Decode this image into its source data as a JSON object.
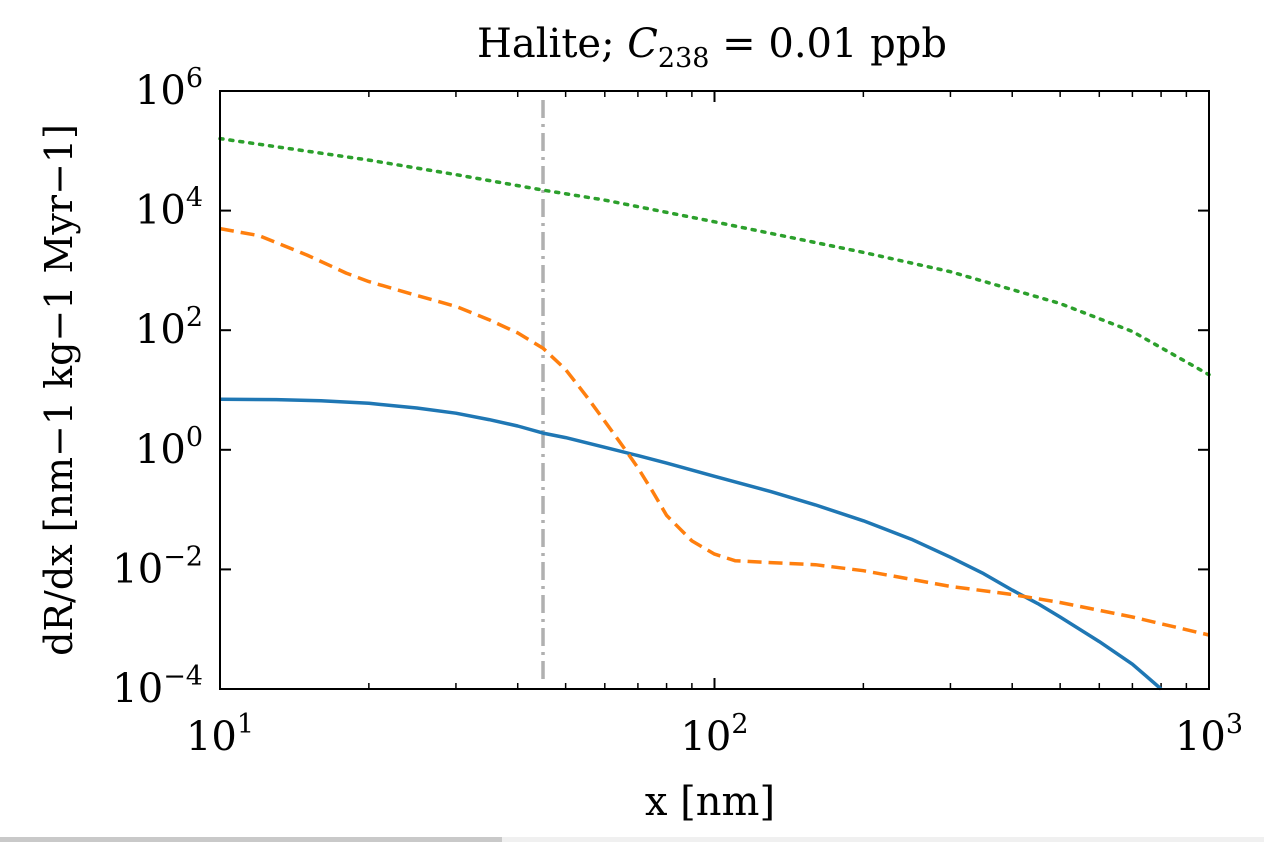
{
  "chart_data": {
    "type": "line",
    "title": "Halite; C238 = 0.01 ppb",
    "title_parts": {
      "main": "Halite; ",
      "var": "C",
      "sub": "238",
      "rest": " = 0.01 ppb"
    },
    "xlabel": "x [nm]",
    "ylabel": "dR/dx [nm−1 kg−1 Myr−1]",
    "xscale": "log",
    "yscale": "log",
    "xlim": [
      10,
      1000
    ],
    "ylim": [
      0.0001,
      1000000
    ],
    "x_ticks": [
      {
        "value": 10,
        "base": "10",
        "exp": "1"
      },
      {
        "value": 100,
        "base": "10",
        "exp": "2"
      },
      {
        "value": 1000,
        "base": "10",
        "exp": "3"
      }
    ],
    "y_ticks": [
      {
        "value": 0.0001,
        "base": "10",
        "exp": "−4"
      },
      {
        "value": 0.01,
        "base": "10",
        "exp": "−2"
      },
      {
        "value": 1,
        "base": "10",
        "exp": "0"
      },
      {
        "value": 100,
        "base": "10",
        "exp": "2"
      },
      {
        "value": 10000,
        "base": "10",
        "exp": "4"
      },
      {
        "value": 1000000,
        "base": "10",
        "exp": "6"
      }
    ],
    "grid": false,
    "vline": {
      "x": 45,
      "color": "#b0b0b0",
      "style": "dash-dot"
    },
    "series": [
      {
        "color": "#1f77b4",
        "style": "solid",
        "x": [
          10,
          13,
          16,
          20,
          25,
          30,
          35,
          40,
          45,
          50,
          60,
          70,
          80,
          100,
          130,
          160,
          200,
          250,
          300,
          350,
          400,
          450,
          500,
          600,
          700,
          800
        ],
        "y": [
          7,
          6.9,
          6.6,
          6.0,
          5.0,
          4.1,
          3.2,
          2.5,
          1.9,
          1.6,
          1.1,
          0.8,
          0.6,
          0.36,
          0.2,
          0.12,
          0.065,
          0.032,
          0.016,
          0.0085,
          0.0045,
          0.0027,
          0.0016,
          0.00062,
          0.00026,
          0.0001
        ]
      },
      {
        "color": "#ff7f0e",
        "style": "dashed",
        "x": [
          10,
          12,
          15,
          18,
          20,
          25,
          30,
          35,
          40,
          45,
          50,
          55,
          60,
          65,
          70,
          75,
          80,
          90,
          100,
          110,
          130,
          160,
          200,
          300,
          400,
          500,
          700,
          1000
        ],
        "y": [
          5000,
          3800,
          1800,
          900,
          650,
          380,
          250,
          150,
          90,
          50,
          22,
          8,
          3,
          1.2,
          0.5,
          0.2,
          0.08,
          0.03,
          0.018,
          0.014,
          0.013,
          0.012,
          0.0095,
          0.0052,
          0.0038,
          0.0028,
          0.0016,
          0.0008
        ]
      },
      {
        "color": "#2ca02c",
        "style": "dotted",
        "x": [
          10,
          20,
          30,
          45,
          60,
          100,
          200,
          300,
          500,
          700,
          1000
        ],
        "y": [
          160000,
          70000,
          40000,
          22000,
          15000,
          6500,
          2000,
          950,
          280,
          95,
          18
        ]
      }
    ]
  }
}
